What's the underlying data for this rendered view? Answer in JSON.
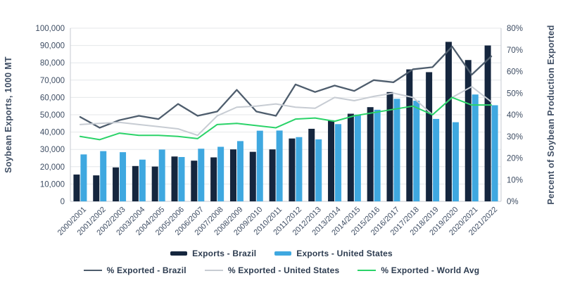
{
  "chart_data": {
    "type": "bar+line combo",
    "title": "",
    "categories": [
      "2000/2001",
      "2001/2002",
      "2002/2003",
      "2003/2004",
      "2004/2005",
      "2005/2006",
      "2006/2007",
      "2007/2008",
      "2008/2009",
      "2009/2010",
      "2010/2011",
      "2011/2012",
      "2012/2013",
      "2013/2014",
      "2014/2015",
      "2015/2016",
      "2016/2017",
      "2017/2018",
      "2018/2019",
      "2019/2020",
      "2020/2021",
      "2021/2022"
    ],
    "bar_series": [
      {
        "name": "Exports - Brazil",
        "color": "#15263E",
        "axis": "left",
        "values": [
          15500,
          15000,
          19600,
          20400,
          20100,
          25900,
          23500,
          25400,
          30000,
          28600,
          30000,
          36300,
          41900,
          46800,
          50600,
          54400,
          63100,
          76200,
          74600,
          92100,
          81600,
          90000
        ]
      },
      {
        "name": "Exports - United States",
        "color": "#3FA8E0",
        "axis": "left",
        "values": [
          27100,
          29000,
          28400,
          24100,
          29900,
          25600,
          30400,
          31500,
          34800,
          40800,
          40900,
          37100,
          35800,
          44600,
          50100,
          52900,
          59200,
          58100,
          47600,
          45700,
          61700,
          55500
        ]
      }
    ],
    "line_series": [
      {
        "name": "% Exported - Brazil",
        "color": "#4E5D6D",
        "axis": "right",
        "values": [
          39,
          34,
          37.5,
          39.5,
          38,
          45,
          39.5,
          41.5,
          51.5,
          41.5,
          39.5,
          54,
          50.5,
          53.5,
          51,
          56,
          55,
          61,
          62,
          71.5,
          58.5,
          67
        ]
      },
      {
        "name": "% Exported - United States",
        "color": "#C7CCD3",
        "axis": "right",
        "values": [
          35.5,
          36,
          36.5,
          35.5,
          34.5,
          33.5,
          30.5,
          39.5,
          43.5,
          44,
          45,
          43.5,
          43,
          48,
          46.5,
          48.5,
          50,
          48,
          40,
          48,
          53,
          46
        ]
      },
      {
        "name": "% Exported - World Avg",
        "color": "#2BD369",
        "axis": "right",
        "values": [
          30,
          28.5,
          31.5,
          30.5,
          30.5,
          30,
          29,
          35.5,
          36,
          35,
          34,
          38,
          38.5,
          37,
          39.5,
          41,
          42.5,
          44,
          40,
          48,
          44.5,
          44.5
        ]
      }
    ],
    "left_axis": {
      "label": "Soybean Exports, 1000 MT",
      "min": 0,
      "max": 100000,
      "step": 10000,
      "tick_labels": [
        "0",
        "10,000",
        "20,000",
        "30,000",
        "40,000",
        "50,000",
        "60,000",
        "70,000",
        "80,000",
        "90,000",
        "100,000"
      ]
    },
    "right_axis": {
      "label": "Percent of Soybean Production Exported",
      "min": 0,
      "max": 80,
      "step": 10,
      "tick_labels": [
        "0%",
        "10%",
        "20%",
        "30%",
        "40%",
        "50%",
        "60%",
        "70%",
        "80%"
      ]
    },
    "grid": true,
    "legend_position": "bottom",
    "colors": {
      "grid": "#E4E7EA",
      "axis_line": "#C6CAD0",
      "tick_text": "#3E4D63",
      "legend_text": "#2D3C50",
      "background": "#FFFFFF"
    }
  }
}
